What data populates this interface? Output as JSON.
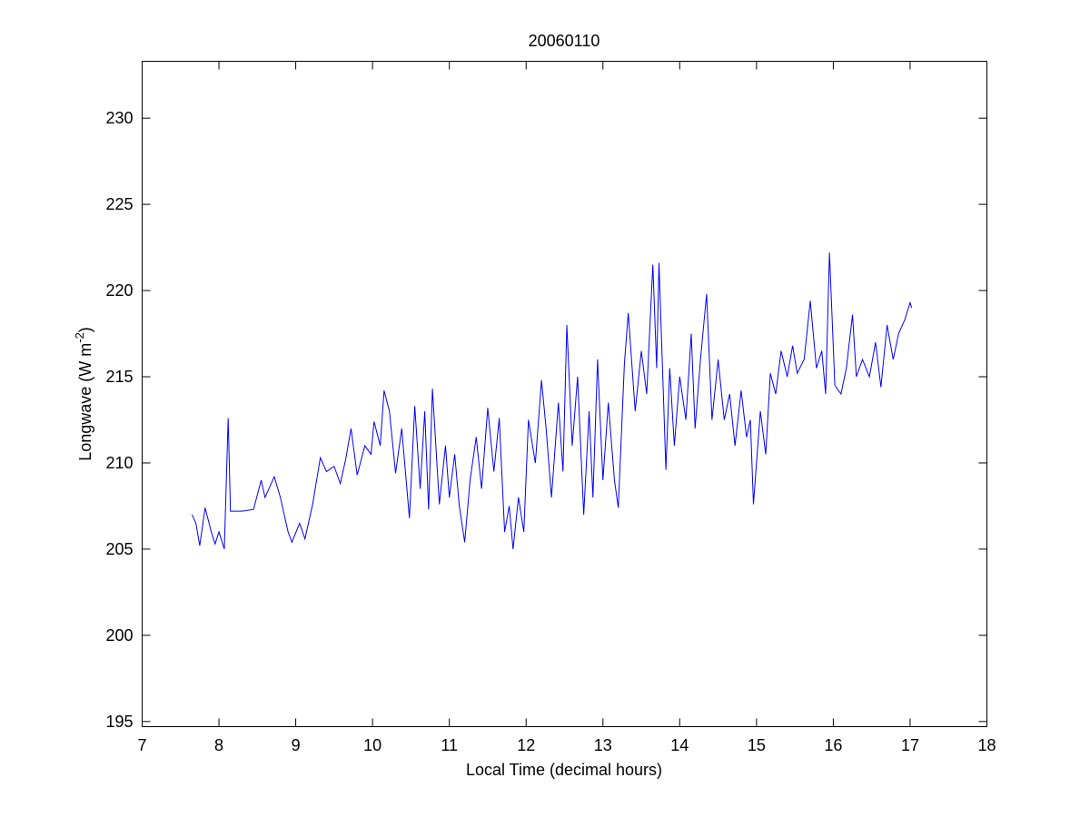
{
  "chart_data": {
    "type": "line",
    "title": "20060110",
    "xlabel": "Local Time (decimal hours)",
    "ylabel": {
      "text": "Longwave (W m",
      "superscript": "-2",
      "end": ")"
    },
    "xlim": [
      7,
      18
    ],
    "xticks": [
      7,
      8,
      9,
      10,
      11,
      12,
      13,
      14,
      15,
      16,
      17,
      18
    ],
    "ylim": [
      194.7,
      233.3
    ],
    "yticks": [
      195,
      200,
      205,
      210,
      215,
      220,
      225,
      230
    ],
    "grid": false,
    "series": [
      {
        "color": "#0000ff",
        "x": [
          7.65,
          7.7,
          7.75,
          7.82,
          7.9,
          7.95,
          8.0,
          8.07,
          8.12,
          8.15,
          8.3,
          8.45,
          8.55,
          8.6,
          8.72,
          8.8,
          8.9,
          8.95,
          9.05,
          9.12,
          9.22,
          9.32,
          9.4,
          9.5,
          9.58,
          9.65,
          9.72,
          9.8,
          9.9,
          9.98,
          10.02,
          10.1,
          10.15,
          10.22,
          10.3,
          10.38,
          10.48,
          10.55,
          10.62,
          10.68,
          10.73,
          10.78,
          10.87,
          10.95,
          11.0,
          11.07,
          11.13,
          11.2,
          11.27,
          11.35,
          11.42,
          11.5,
          11.58,
          11.65,
          11.72,
          11.78,
          11.83,
          11.9,
          11.97,
          12.03,
          12.12,
          12.2,
          12.26,
          12.33,
          12.42,
          12.48,
          12.53,
          12.6,
          12.67,
          12.75,
          12.82,
          12.87,
          12.93,
          13.0,
          13.07,
          13.15,
          13.2,
          13.28,
          13.33,
          13.42,
          13.5,
          13.57,
          13.65,
          13.7,
          13.73,
          13.82,
          13.87,
          13.93,
          14.0,
          14.08,
          14.15,
          14.2,
          14.27,
          14.35,
          14.42,
          14.5,
          14.58,
          14.65,
          14.72,
          14.8,
          14.87,
          14.92,
          14.96,
          15.0,
          15.05,
          15.12,
          15.18,
          15.25,
          15.32,
          15.4,
          15.47,
          15.53,
          15.62,
          15.7,
          15.78,
          15.85,
          15.9,
          15.95,
          16.02,
          16.1,
          16.17,
          16.25,
          16.3,
          16.38,
          16.47,
          16.55,
          16.62,
          16.7,
          16.78,
          16.85,
          16.93,
          17.0,
          17.02
        ],
        "values": [
          207.0,
          206.5,
          205.2,
          207.4,
          206.0,
          205.3,
          206.0,
          205.0,
          212.6,
          207.2,
          207.2,
          207.3,
          209.0,
          208.0,
          209.2,
          208.0,
          206.0,
          205.4,
          206.5,
          205.6,
          207.6,
          210.3,
          209.5,
          209.8,
          208.8,
          210.2,
          212.0,
          209.3,
          211.0,
          210.5,
          212.4,
          211.0,
          214.2,
          213.0,
          209.4,
          212.0,
          206.8,
          213.3,
          208.5,
          213.0,
          207.3,
          214.3,
          207.6,
          211.0,
          208.0,
          210.5,
          207.5,
          205.4,
          209.0,
          211.5,
          208.5,
          213.2,
          209.5,
          212.6,
          206.0,
          207.5,
          205.0,
          208.0,
          206.0,
          212.5,
          210.0,
          214.8,
          212.0,
          208.0,
          213.5,
          209.5,
          218.0,
          211.0,
          215.0,
          207.0,
          213.0,
          208.0,
          216.0,
          209.0,
          213.5,
          209.0,
          207.4,
          215.8,
          218.7,
          213.0,
          216.5,
          214.0,
          221.5,
          215.5,
          221.6,
          209.6,
          215.5,
          211.0,
          215.0,
          212.5,
          217.5,
          212.0,
          216.0,
          219.8,
          212.5,
          216.0,
          212.5,
          214.0,
          211.0,
          214.2,
          211.5,
          212.5,
          207.6,
          210.0,
          213.0,
          210.5,
          215.2,
          214.0,
          216.5,
          215.0,
          216.8,
          215.2,
          216.0,
          219.4,
          215.5,
          216.5,
          214.0,
          222.2,
          214.5,
          214.0,
          215.5,
          218.6,
          215.0,
          216.0,
          215.0,
          217.0,
          214.4,
          218.0,
          216.0,
          217.5,
          218.3,
          219.3,
          219.0
        ]
      }
    ]
  }
}
